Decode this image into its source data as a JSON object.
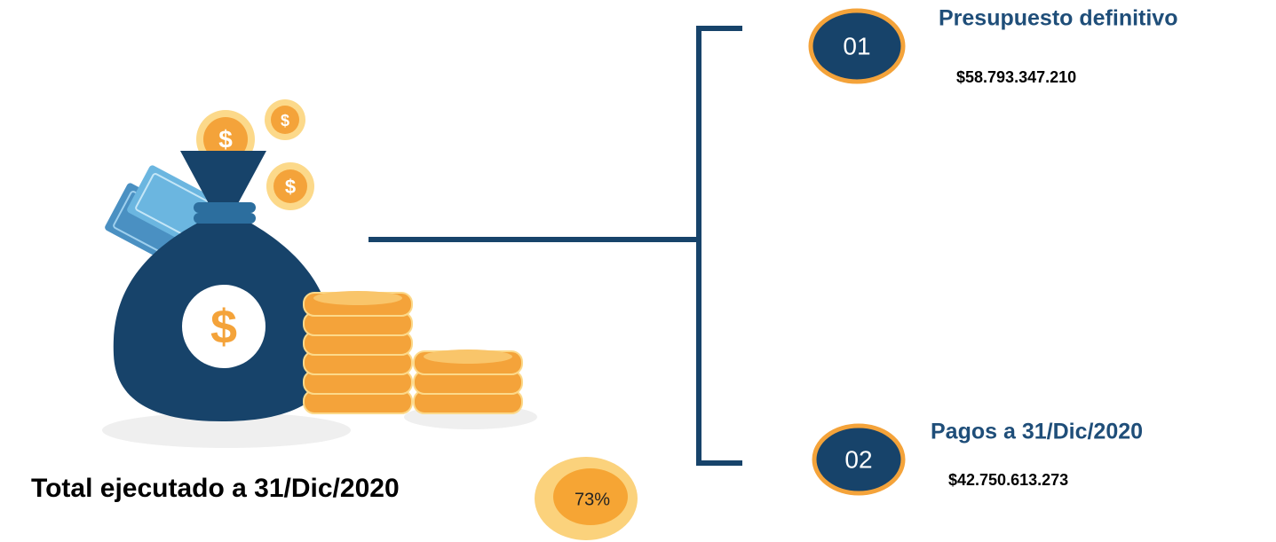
{
  "items": [
    {
      "number": "01",
      "title": "Presupuesto definitivo",
      "value": "$58.793.347.210"
    },
    {
      "number": "02",
      "title": "Pagos a 31/Dic/2020",
      "value": "$42.750.613.273"
    }
  ],
  "total": {
    "label": "Total ejecutado a 31/Dic/2020",
    "percent": "73%"
  },
  "icon_symbol": "$"
}
